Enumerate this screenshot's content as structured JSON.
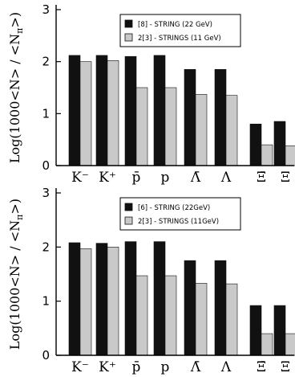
{
  "chart_data": [
    {
      "type": "bar",
      "ylabel": "Log(1000<N> / <N",
      "ylabel_subscript": "π",
      "ylabel_close": ">)",
      "ylim": [
        0,
        3
      ],
      "yticks": [
        "0",
        "1",
        "2",
        "3"
      ],
      "categories": [
        "K⁻",
        "K⁺",
        "p̄",
        "p",
        "Λ̄",
        "Λ",
        "Ξ̄",
        "Ξ"
      ],
      "legend_position": "top-right",
      "series": [
        {
          "name": "[8] - STRING (22 GeV)",
          "fill": "#111111",
          "values": [
            2.12,
            2.12,
            2.1,
            2.12,
            1.85,
            1.85,
            0.8,
            0.85
          ]
        },
        {
          "name": "2[3] - STRINGS (11 GeV)",
          "fill": "#c9c9c9",
          "values": [
            2.0,
            2.02,
            1.5,
            1.5,
            1.37,
            1.35,
            0.4,
            0.38
          ]
        }
      ]
    },
    {
      "type": "bar",
      "ylabel": "Log(1000<N> / <N",
      "ylabel_subscript": "π",
      "ylabel_close": ">)",
      "ylim": [
        0,
        3
      ],
      "yticks": [
        "0",
        "1",
        "2",
        "3"
      ],
      "categories": [
        "K⁻",
        "K⁺",
        "p̄",
        "p",
        "Λ̄",
        "Λ",
        "Ξ̄",
        "Ξ"
      ],
      "legend_position": "top-right",
      "series": [
        {
          "name": "[6] - STRING (22GeV)",
          "fill": "#111111",
          "values": [
            2.08,
            2.07,
            2.1,
            2.1,
            1.75,
            1.75,
            0.92,
            0.92
          ]
        },
        {
          "name": "2[3] - STRINGS (11GeV)",
          "fill": "#c9c9c9",
          "values": [
            1.97,
            2.0,
            1.47,
            1.47,
            1.33,
            1.32,
            0.4,
            0.4
          ]
        }
      ]
    }
  ]
}
